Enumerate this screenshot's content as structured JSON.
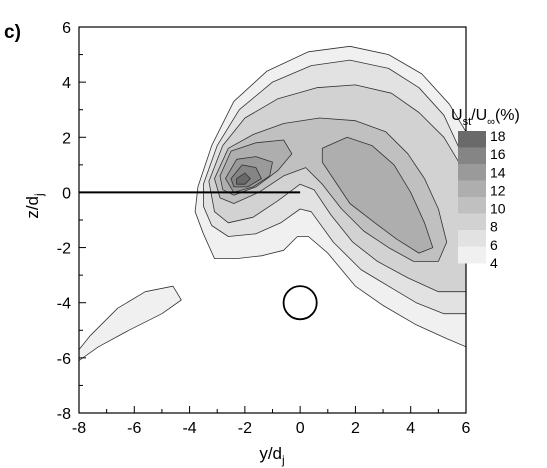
{
  "chart_data": {
    "type": "contour",
    "panel_label": "c)",
    "xlabel": {
      "main": "y/d",
      "sub": "j"
    },
    "ylabel": {
      "main": "z/d",
      "sub": "j"
    },
    "xlim": [
      -8,
      6
    ],
    "ylim": [
      -8,
      6
    ],
    "xticks": [
      "-8",
      "-6",
      "-4",
      "-2",
      "0",
      "2",
      "4",
      "6"
    ],
    "yticks": [
      "-8",
      "-6",
      "-4",
      "-2",
      "0",
      "2",
      "4",
      "6"
    ],
    "colorbar": {
      "title": {
        "a": "U",
        "a_sub": "st",
        "b": "/U",
        "b_sub": "∞",
        "c": "(%)"
      },
      "levels": [
        4,
        6,
        8,
        10,
        12,
        14,
        16,
        18
      ],
      "labels": [
        "18",
        "16",
        "14",
        "12",
        "10",
        "8",
        "6",
        "4"
      ],
      "colors": [
        "#f0f0f0",
        "#e2e2e2",
        "#d2d2d2",
        "#c0c0c0",
        "#aeaeae",
        "#9a9a9a",
        "#858585",
        "#6a6a6a"
      ]
    },
    "contour_regions": [
      {
        "level": 4,
        "path": [
          [
            -3.7,
            0.2
          ],
          [
            -3.2,
            1.7
          ],
          [
            -2.4,
            3.3
          ],
          [
            -1.2,
            4.4
          ],
          [
            0.3,
            5.1
          ],
          [
            1.8,
            5.3
          ],
          [
            3.2,
            5.0
          ],
          [
            4.4,
            4.3
          ],
          [
            5.4,
            3.2
          ],
          [
            6.0,
            2.2
          ],
          [
            6.0,
            -5.6
          ],
          [
            5.3,
            -5.3
          ],
          [
            4.2,
            -4.8
          ],
          [
            3.0,
            -4.1
          ],
          [
            2.0,
            -3.4
          ],
          [
            1.0,
            -2.2
          ],
          [
            0.3,
            -1.6
          ],
          [
            -0.1,
            -1.6
          ],
          [
            -0.6,
            -2.1
          ],
          [
            -1.4,
            -2.3
          ],
          [
            -2.3,
            -2.4
          ],
          [
            -3.1,
            -2.4
          ],
          [
            -3.5,
            -1.5
          ],
          [
            -3.8,
            -0.7
          ]
        ]
      },
      {
        "level": 4,
        "path": [
          [
            -8.0,
            -6.1
          ],
          [
            -7.3,
            -5.6
          ],
          [
            -6.2,
            -5.0
          ],
          [
            -5.0,
            -4.4
          ],
          [
            -4.3,
            -3.9
          ],
          [
            -4.6,
            -3.4
          ],
          [
            -5.6,
            -3.6
          ],
          [
            -6.6,
            -4.2
          ],
          [
            -7.6,
            -5.2
          ],
          [
            -8.0,
            -5.7
          ]
        ]
      },
      {
        "level": 6,
        "path": [
          [
            -3.5,
            0.3
          ],
          [
            -3.0,
            1.7
          ],
          [
            -2.2,
            3.0
          ],
          [
            -1.0,
            4.0
          ],
          [
            0.4,
            4.6
          ],
          [
            1.8,
            4.8
          ],
          [
            3.2,
            4.5
          ],
          [
            4.3,
            3.8
          ],
          [
            5.2,
            2.8
          ],
          [
            5.8,
            1.5
          ],
          [
            6.0,
            0.6
          ],
          [
            6.0,
            -4.4
          ],
          [
            5.2,
            -4.4
          ],
          [
            4.2,
            -4.0
          ],
          [
            3.2,
            -3.4
          ],
          [
            2.2,
            -2.8
          ],
          [
            1.2,
            -1.8
          ],
          [
            0.4,
            -0.7
          ],
          [
            0.0,
            -0.6
          ],
          [
            -0.7,
            -1.1
          ],
          [
            -1.6,
            -1.5
          ],
          [
            -2.6,
            -1.6
          ],
          [
            -3.2,
            -1.2
          ],
          [
            -3.5,
            -0.5
          ]
        ]
      },
      {
        "level": 8,
        "path": [
          [
            -3.3,
            0.4
          ],
          [
            -2.8,
            1.7
          ],
          [
            -2.0,
            2.7
          ],
          [
            -0.8,
            3.4
          ],
          [
            0.6,
            3.8
          ],
          [
            2.0,
            3.9
          ],
          [
            3.3,
            3.6
          ],
          [
            4.3,
            2.9
          ],
          [
            5.2,
            2.0
          ],
          [
            5.8,
            1.0
          ],
          [
            6.0,
            0.0
          ],
          [
            6.0,
            -3.6
          ],
          [
            5.0,
            -3.6
          ],
          [
            3.9,
            -3.1
          ],
          [
            2.8,
            -2.5
          ],
          [
            1.9,
            -1.8
          ],
          [
            1.1,
            -0.8
          ],
          [
            0.5,
            0.1
          ],
          [
            0.0,
            0.3
          ],
          [
            -0.8,
            -0.3
          ],
          [
            -1.7,
            -0.9
          ],
          [
            -2.6,
            -1.1
          ],
          [
            -3.1,
            -0.7
          ]
        ]
      },
      {
        "level": 10,
        "path": [
          [
            -3.1,
            0.5
          ],
          [
            -2.6,
            1.6
          ],
          [
            -1.7,
            2.1
          ],
          [
            -0.6,
            2.5
          ],
          [
            0.7,
            2.7
          ],
          [
            2.0,
            2.6
          ],
          [
            3.1,
            2.2
          ],
          [
            3.9,
            1.4
          ],
          [
            4.5,
            0.5
          ],
          [
            5.0,
            -0.6
          ],
          [
            5.3,
            -1.8
          ],
          [
            5.0,
            -2.5
          ],
          [
            4.1,
            -2.5
          ],
          [
            3.2,
            -2.0
          ],
          [
            2.3,
            -1.4
          ],
          [
            1.5,
            -0.6
          ],
          [
            0.8,
            0.3
          ],
          [
            0.2,
            0.9
          ],
          [
            -0.6,
            0.6
          ],
          [
            -1.5,
            0.0
          ],
          [
            -2.4,
            -0.4
          ],
          [
            -2.9,
            -0.2
          ]
        ]
      },
      {
        "level": 12,
        "path": [
          [
            -2.9,
            0.6
          ],
          [
            -2.5,
            1.5
          ],
          [
            -1.6,
            1.8
          ],
          [
            -0.6,
            1.9
          ],
          [
            -0.3,
            1.4
          ],
          [
            -0.8,
            0.8
          ],
          [
            -1.6,
            0.2
          ],
          [
            -2.4,
            -0.1
          ],
          [
            -2.8,
            0.1
          ]
        ]
      },
      {
        "level": 12,
        "path": [
          [
            0.8,
            1.6
          ],
          [
            1.7,
            2.0
          ],
          [
            2.6,
            1.7
          ],
          [
            3.4,
            1.0
          ],
          [
            4.0,
            0.0
          ],
          [
            4.5,
            -1.1
          ],
          [
            4.8,
            -2.0
          ],
          [
            4.3,
            -2.2
          ],
          [
            3.5,
            -1.7
          ],
          [
            2.7,
            -1.1
          ],
          [
            1.8,
            -0.4
          ],
          [
            1.2,
            0.5
          ],
          [
            0.8,
            1.1
          ]
        ]
      },
      {
        "level": 14,
        "path": [
          [
            -2.7,
            0.5
          ],
          [
            -2.3,
            1.2
          ],
          [
            -1.6,
            1.3
          ],
          [
            -1.0,
            1.1
          ],
          [
            -1.1,
            0.6
          ],
          [
            -1.7,
            0.2
          ],
          [
            -2.4,
            0.0
          ]
        ]
      },
      {
        "level": 16,
        "path": [
          [
            -2.5,
            0.5
          ],
          [
            -2.1,
            1.0
          ],
          [
            -1.6,
            0.9
          ],
          [
            -1.4,
            0.5
          ],
          [
            -1.9,
            0.2
          ],
          [
            -2.4,
            0.2
          ]
        ]
      },
      {
        "level": 18,
        "path": [
          [
            -2.3,
            0.5
          ],
          [
            -2.0,
            0.7
          ],
          [
            -1.8,
            0.5
          ],
          [
            -2.0,
            0.3
          ],
          [
            -2.3,
            0.3
          ]
        ]
      }
    ],
    "line_segment": {
      "x": [
        -8,
        0
      ],
      "y": [
        0,
        0
      ]
    },
    "circle": {
      "cx": 0,
      "cy": -4,
      "r": 0.6
    }
  }
}
